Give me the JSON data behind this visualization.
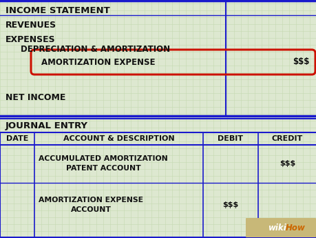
{
  "bg_color": "#dde8d0",
  "grid_color": "#c5d9b0",
  "blue_line_color": "#1a1acc",
  "red_oval_color": "#cc1100",
  "text_color": "#111111",
  "section1_title": "INCOME STATEMENT",
  "revenues_label": "REVENUES",
  "expenses_label": "EXPENSES",
  "depreciation_label": "DEPRECIATION & AMORTIZATION",
  "amortization_label": "AMORTIZATION EXPENSE",
  "amortization_value": "$$$",
  "net_income_label": "NET INCOME",
  "section2_title": "JOURNAL ENTRY",
  "col_date": "DATE",
  "col_account": "ACCOUNT & DESCRIPTION",
  "col_debit": "DEBIT",
  "col_credit": "CREDIT",
  "row1_account": "ACCUMULATED AMORTIZATION\nPATENT ACCOUNT",
  "row1_credit": "$$$",
  "row2_account": "AMORTIZATION EXPENSE\nACCOUNT",
  "row2_debit": "$$$",
  "wikihow_text": "wiki",
  "wikihow_text2": "How",
  "figw": 4.6,
  "figh": 3.45,
  "dpi": 100
}
